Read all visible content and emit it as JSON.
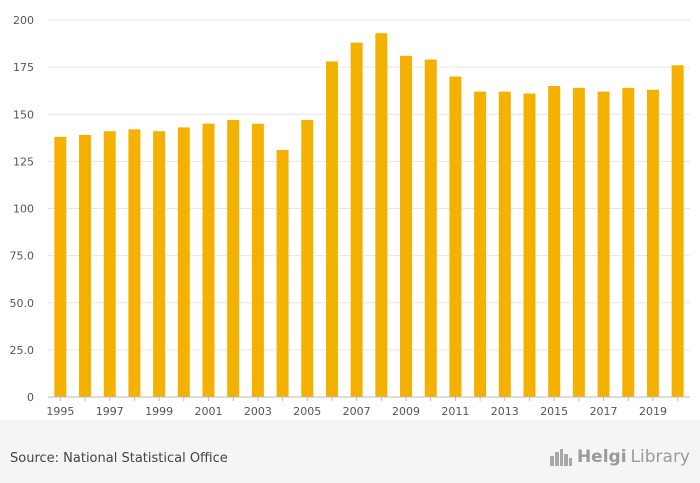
{
  "chart_data": {
    "type": "bar",
    "title": "",
    "xlabel": "",
    "ylabel": "",
    "ylim": [
      0,
      200
    ],
    "yticks": [
      0,
      25.0,
      50.0,
      75.0,
      100,
      125,
      150,
      175,
      200
    ],
    "ytick_labels": [
      "0",
      "25.0",
      "50.0",
      "75.0",
      "100",
      "125",
      "150",
      "175",
      "200"
    ],
    "categories": [
      "1995",
      "1996",
      "1997",
      "1998",
      "1999",
      "2000",
      "2001",
      "2002",
      "2003",
      "2004",
      "2005",
      "2006",
      "2007",
      "2008",
      "2009",
      "2010",
      "2011",
      "2012",
      "2013",
      "2014",
      "2015",
      "2016",
      "2017",
      "2018",
      "2019",
      "2020"
    ],
    "xtick_labels": [
      "1995",
      "1997",
      "1999",
      "2001",
      "2003",
      "2005",
      "2007",
      "2009",
      "2011",
      "2013",
      "2015",
      "2017",
      "2019"
    ],
    "values": [
      138,
      139,
      141,
      142,
      141,
      143,
      145,
      147,
      145,
      131,
      147,
      178,
      188,
      193,
      181,
      179,
      170,
      162,
      162,
      161,
      165,
      164,
      162,
      164,
      163,
      176
    ],
    "bar_color": "#f5b100",
    "grid": true
  },
  "footer": {
    "source": "Source: National Statistical Office",
    "brand_part1": "Helgi",
    "brand_part2": "Library",
    "brand_icon": "city-skyline-icon"
  }
}
